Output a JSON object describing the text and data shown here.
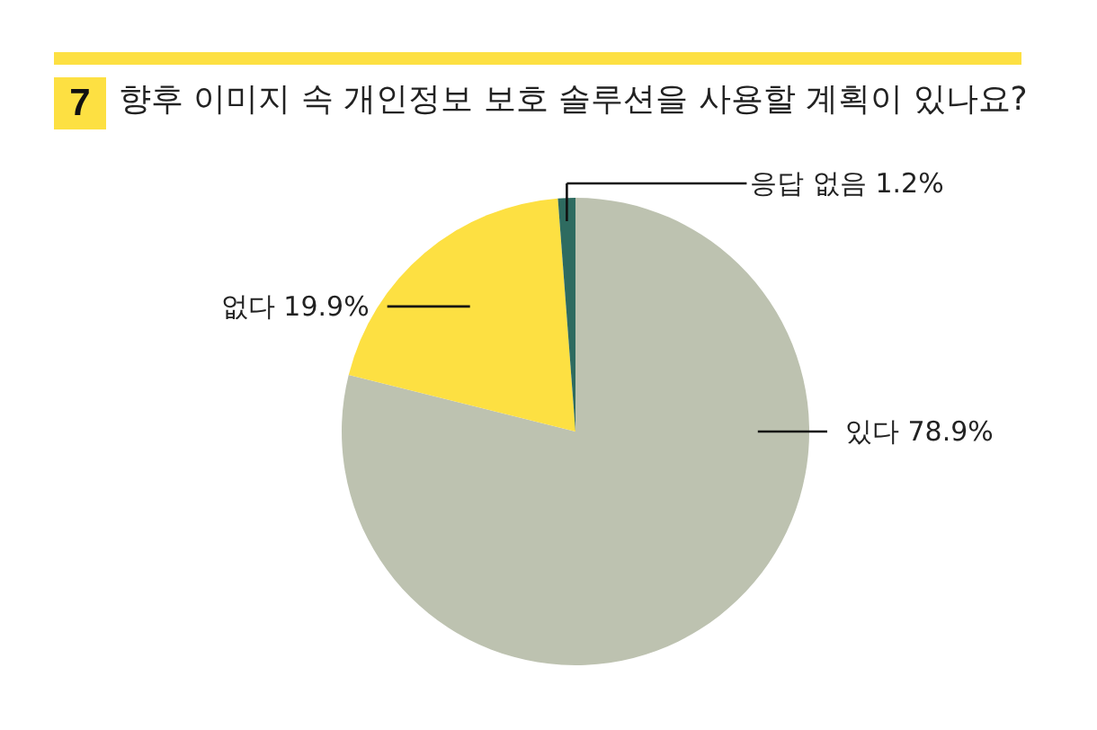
{
  "chart_data": {
    "type": "pie",
    "title": "향후 이미지 속 개인정보 보호 솔루션을 사용할 계획이 있나요?",
    "annotations": [
      "7"
    ],
    "categories": [
      "있다",
      "없다",
      "응답 없음"
    ],
    "values": [
      78.9,
      19.9,
      1.2
    ],
    "value_labels": [
      "78.9%",
      "19.9%",
      "1.2%"
    ],
    "colors": [
      "#bdc2b0",
      "#fde042",
      "#2e6b60"
    ]
  }
}
